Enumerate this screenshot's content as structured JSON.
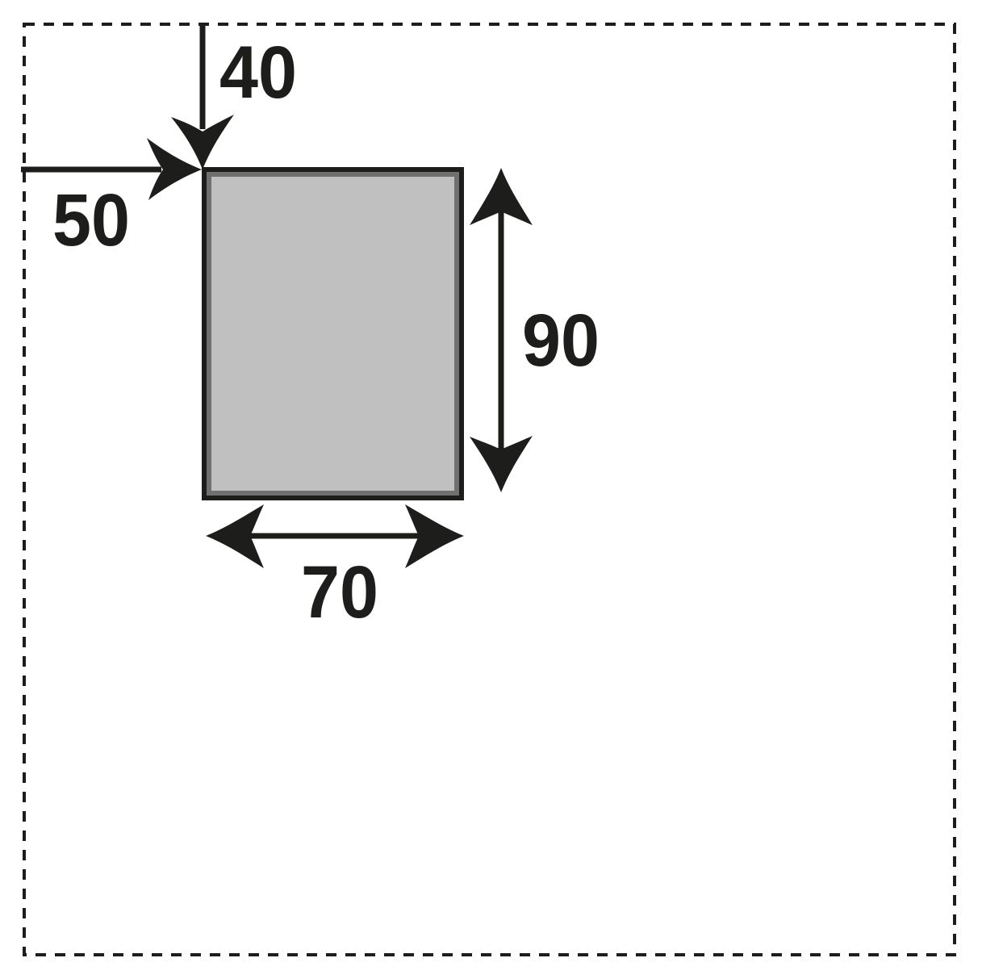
{
  "colors": {
    "ink": "#1d1d1b",
    "panel_fill": "#c0c0c0",
    "panel_inner_border": "#707070",
    "background": "#ffffff"
  },
  "dimensions": {
    "top_offset": "40",
    "left_offset": "50",
    "height": "90",
    "width": "70"
  }
}
